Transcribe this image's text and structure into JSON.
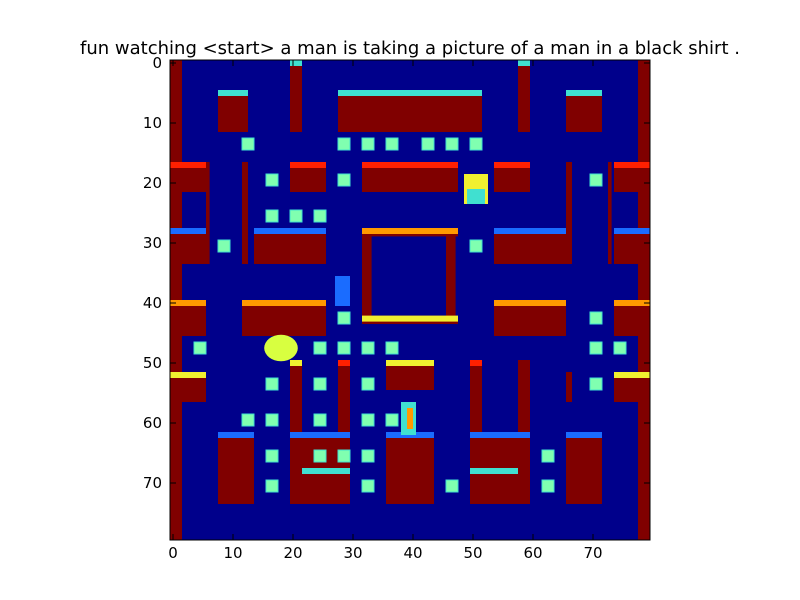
{
  "figure": {
    "title": "fun watching <start> a man is taking a picture of a man in a black shirt ."
  },
  "axes": {
    "x_ticks": [
      "0",
      "10",
      "20",
      "30",
      "40",
      "50",
      "60",
      "70"
    ],
    "y_ticks": [
      "0",
      "10",
      "20",
      "30",
      "40",
      "50",
      "60",
      "70"
    ],
    "grid_extent": [
      80,
      80
    ],
    "colormap": "jet"
  },
  "colors": {
    "background": "#00008b",
    "wall_fill": "#800000",
    "wall_edge_red": "#ff2000",
    "wall_edge_orange": "#ff9900",
    "wall_edge_yellow": "#f0f030",
    "wall_edge_cyan": "#40e0d0",
    "wall_edge_blue": "#1a6cff",
    "pellet": "#80ffb0",
    "pacman": "#d8ff40"
  },
  "game": {
    "sprites": [
      "pacman",
      "ghost-blue",
      "ghost-yellow",
      "ghost-cyan"
    ]
  }
}
